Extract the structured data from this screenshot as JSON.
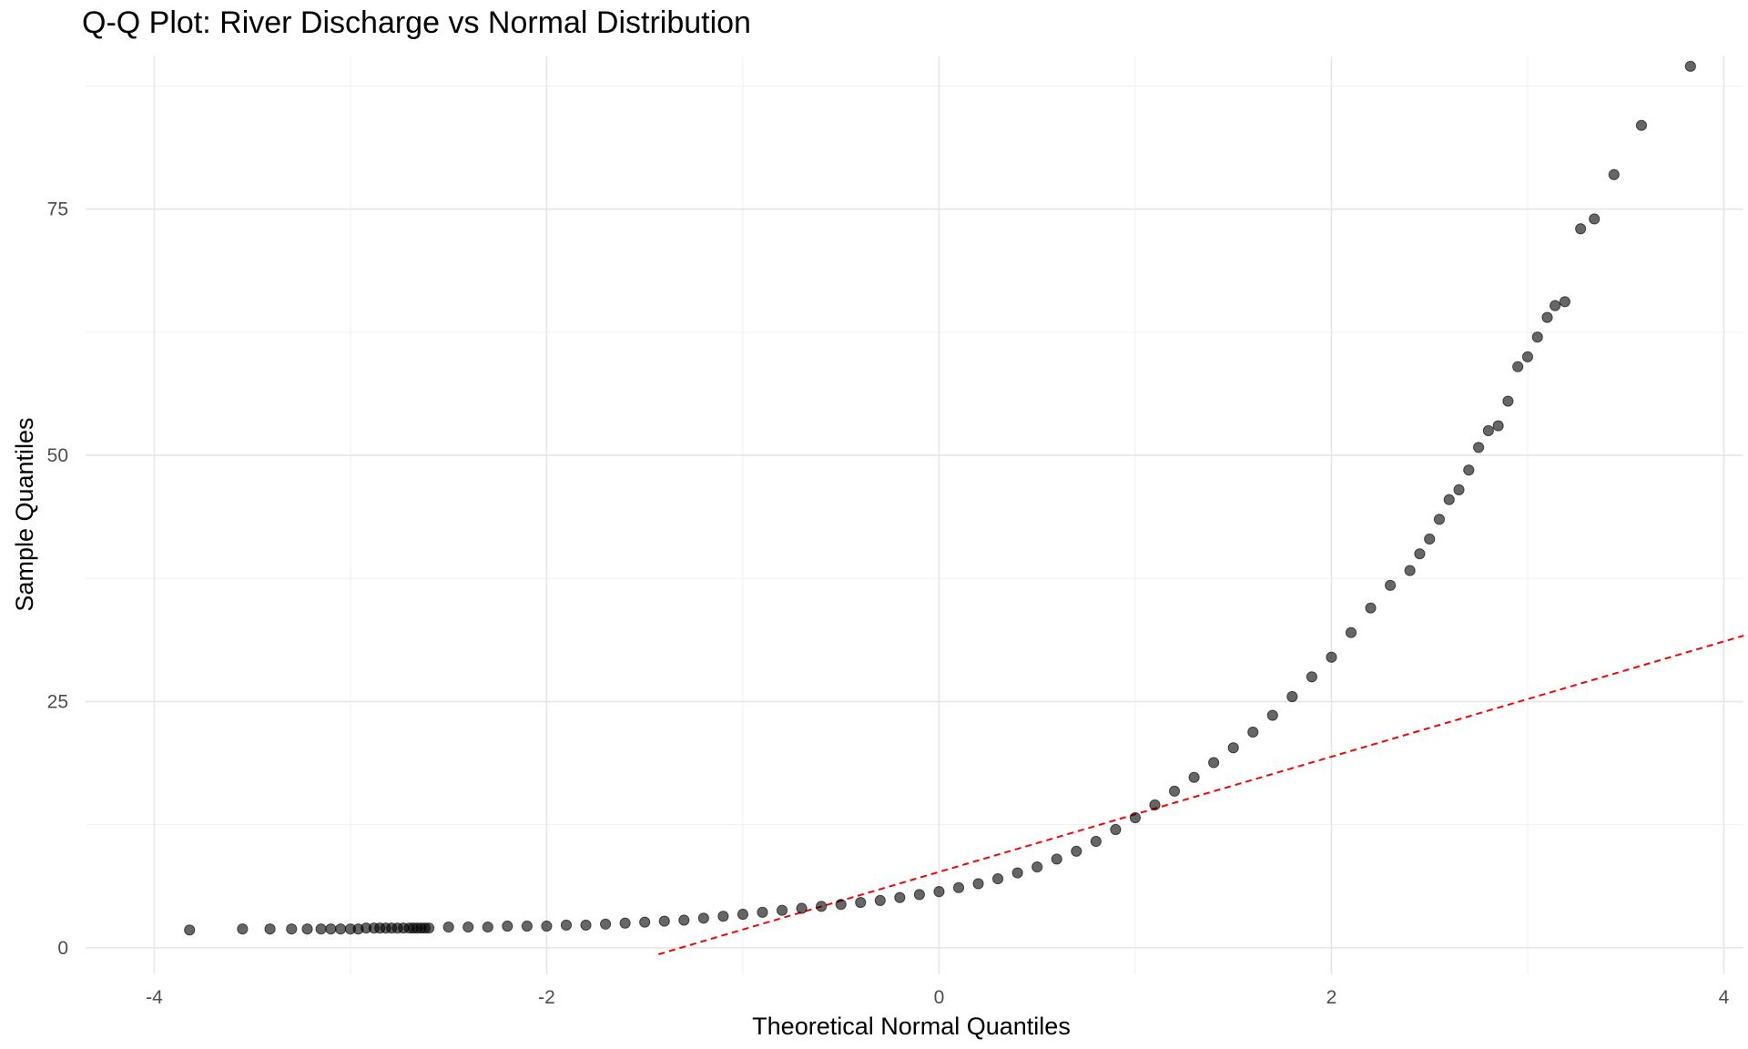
{
  "chart_data": {
    "type": "scatter",
    "title": "Q-Q Plot: River Discharge vs Normal Distribution",
    "xlabel": "Theoretical Normal Quantiles",
    "ylabel": "Sample Quantiles",
    "xlim": [
      -4.35,
      4.1
    ],
    "ylim": [
      -2.7,
      90.5
    ],
    "x_ticks": [
      -4,
      -2,
      0,
      2,
      4
    ],
    "x_tick_labels": [
      "-4",
      "-2",
      "0",
      "2",
      "4"
    ],
    "y_ticks": [
      0,
      25,
      50,
      75
    ],
    "y_tick_labels": [
      "0",
      "25",
      "50",
      "75"
    ],
    "grid": true,
    "point_color": "#000000",
    "point_opacity": 0.6,
    "points": [
      [
        -3.82,
        1.8
      ],
      [
        -3.55,
        1.9
      ],
      [
        -3.41,
        1.9
      ],
      [
        -3.3,
        1.9
      ],
      [
        -3.22,
        1.9
      ],
      [
        -3.15,
        1.9
      ],
      [
        -3.1,
        1.9
      ],
      [
        -3.05,
        1.9
      ],
      [
        -3.0,
        1.9
      ],
      [
        -2.96,
        1.9
      ],
      [
        -2.92,
        2.0
      ],
      [
        -2.88,
        2.0
      ],
      [
        -2.85,
        2.0
      ],
      [
        -2.82,
        2.0
      ],
      [
        -2.79,
        2.0
      ],
      [
        -2.76,
        2.0
      ],
      [
        -2.73,
        2.0
      ],
      [
        -2.7,
        2.0
      ],
      [
        -2.68,
        2.0
      ],
      [
        -2.66,
        2.0
      ],
      [
        -2.64,
        2.0
      ],
      [
        -2.62,
        2.0
      ],
      [
        -2.6,
        2.0
      ],
      [
        -2.5,
        2.1
      ],
      [
        -2.4,
        2.1
      ],
      [
        -2.3,
        2.1
      ],
      [
        -2.2,
        2.2
      ],
      [
        -2.1,
        2.2
      ],
      [
        -2.0,
        2.2
      ],
      [
        -1.9,
        2.3
      ],
      [
        -1.8,
        2.3
      ],
      [
        -1.7,
        2.4
      ],
      [
        -1.6,
        2.5
      ],
      [
        -1.5,
        2.6
      ],
      [
        -1.4,
        2.7
      ],
      [
        -1.3,
        2.8
      ],
      [
        -1.2,
        3.0
      ],
      [
        -1.1,
        3.2
      ],
      [
        -1.0,
        3.4
      ],
      [
        -0.9,
        3.6
      ],
      [
        -0.8,
        3.8
      ],
      [
        -0.7,
        4.0
      ],
      [
        -0.6,
        4.2
      ],
      [
        -0.5,
        4.4
      ],
      [
        -0.4,
        4.6
      ],
      [
        -0.3,
        4.8
      ],
      [
        -0.2,
        5.1
      ],
      [
        -0.1,
        5.4
      ],
      [
        0.0,
        5.7
      ],
      [
        0.1,
        6.1
      ],
      [
        0.2,
        6.5
      ],
      [
        0.3,
        7.0
      ],
      [
        0.4,
        7.6
      ],
      [
        0.5,
        8.2
      ],
      [
        0.6,
        9.0
      ],
      [
        0.7,
        9.8
      ],
      [
        0.8,
        10.8
      ],
      [
        0.9,
        12.0
      ],
      [
        1.0,
        13.2
      ],
      [
        1.1,
        14.5
      ],
      [
        1.2,
        15.9
      ],
      [
        1.3,
        17.3
      ],
      [
        1.4,
        18.8
      ],
      [
        1.5,
        20.3
      ],
      [
        1.6,
        21.9
      ],
      [
        1.7,
        23.6
      ],
      [
        1.8,
        25.5
      ],
      [
        1.9,
        27.5
      ],
      [
        2.0,
        29.5
      ],
      [
        2.1,
        32.0
      ],
      [
        2.2,
        34.5
      ],
      [
        2.3,
        36.8
      ],
      [
        2.4,
        38.3
      ],
      [
        2.45,
        40.0
      ],
      [
        2.5,
        41.5
      ],
      [
        2.55,
        43.5
      ],
      [
        2.6,
        45.5
      ],
      [
        2.65,
        46.5
      ],
      [
        2.7,
        48.5
      ],
      [
        2.75,
        50.8
      ],
      [
        2.8,
        52.5
      ],
      [
        2.85,
        53.0
      ],
      [
        2.9,
        55.5
      ],
      [
        2.95,
        59.0
      ],
      [
        3.0,
        60.0
      ],
      [
        3.05,
        62.0
      ],
      [
        3.1,
        64.0
      ],
      [
        3.14,
        65.2
      ],
      [
        3.19,
        65.6
      ],
      [
        3.27,
        73.0
      ],
      [
        3.34,
        74.0
      ],
      [
        3.44,
        78.5
      ],
      [
        3.58,
        83.5
      ],
      [
        3.83,
        89.5
      ]
    ],
    "reference_line": {
      "style": "dashed",
      "color": "#ff0000",
      "slope": 5.85,
      "intercept": 7.7,
      "x_start": -1.43,
      "x_end": 4.1
    }
  }
}
